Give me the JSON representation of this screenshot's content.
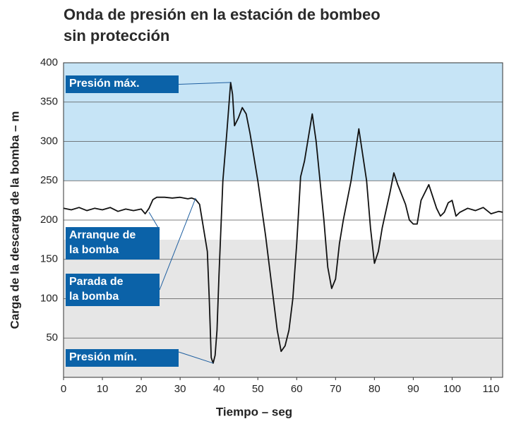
{
  "chart_data": {
    "type": "line",
    "title": [
      "Onda de presión en la estación de bombeo",
      "sin protección"
    ],
    "x_label": "Tiempo – seg",
    "y_label": "Carga de la descarga de la bomba – m",
    "xlim": [
      0,
      113
    ],
    "ylim": [
      0,
      400
    ],
    "xticks": [
      0,
      10,
      20,
      30,
      40,
      50,
      60,
      70,
      80,
      90,
      100,
      110
    ],
    "yticks": [
      50,
      100,
      150,
      200,
      250,
      300,
      350,
      400
    ],
    "grid": true,
    "bands": [
      {
        "from": 250,
        "to": 400,
        "color": "#c6e4f6"
      },
      {
        "from": 0,
        "to": 175,
        "color": "#e6e6e6"
      }
    ],
    "series": [
      {
        "color": "#111111",
        "x": [
          0,
          2,
          4,
          6,
          8,
          10,
          12,
          14,
          16,
          18,
          20,
          21,
          22,
          23,
          24,
          26,
          28,
          30,
          32,
          33,
          34,
          35,
          36,
          37,
          37.5,
          38,
          38.5,
          39,
          39.5,
          40,
          41,
          42,
          43,
          43.5,
          44,
          45,
          46,
          47,
          48,
          50,
          52,
          54,
          55,
          56,
          57,
          58,
          59,
          60,
          61,
          62,
          64,
          65,
          66,
          67,
          68,
          69,
          70,
          71,
          72,
          74,
          76,
          78,
          79,
          80,
          81,
          82,
          84,
          85,
          86,
          88,
          89,
          90,
          91,
          92,
          94,
          96,
          97,
          98,
          99,
          100,
          101,
          102,
          104,
          106,
          108,
          110,
          112,
          113
        ],
        "values": [
          215,
          213,
          216,
          212,
          215,
          213,
          216,
          211,
          214,
          212,
          214,
          208,
          215,
          226,
          229,
          229,
          228,
          229,
          227,
          228,
          226,
          220,
          190,
          160,
          100,
          25,
          18,
          28,
          60,
          130,
          250,
          310,
          375,
          360,
          320,
          330,
          343,
          335,
          310,
          250,
          180,
          100,
          60,
          33,
          40,
          60,
          100,
          170,
          255,
          275,
          335,
          300,
          250,
          200,
          140,
          113,
          125,
          170,
          200,
          250,
          316,
          250,
          190,
          145,
          160,
          190,
          235,
          260,
          245,
          220,
          200,
          195,
          195,
          225,
          245,
          215,
          205,
          210,
          222,
          225,
          205,
          210,
          215,
          212,
          216,
          208,
          211,
          210
        ]
      }
    ],
    "annotations": [
      {
        "text": [
          "Presión máx."
        ],
        "x": 43,
        "y": 375
      },
      {
        "text": [
          "Arranque de",
          "la bomba"
        ],
        "x": 22,
        "y": 210
      },
      {
        "text": [
          "Parada de",
          "la bomba"
        ],
        "x": 34,
        "y": 228
      },
      {
        "text": [
          "Presión mín."
        ],
        "x": 38.5,
        "y": 18
      }
    ]
  }
}
